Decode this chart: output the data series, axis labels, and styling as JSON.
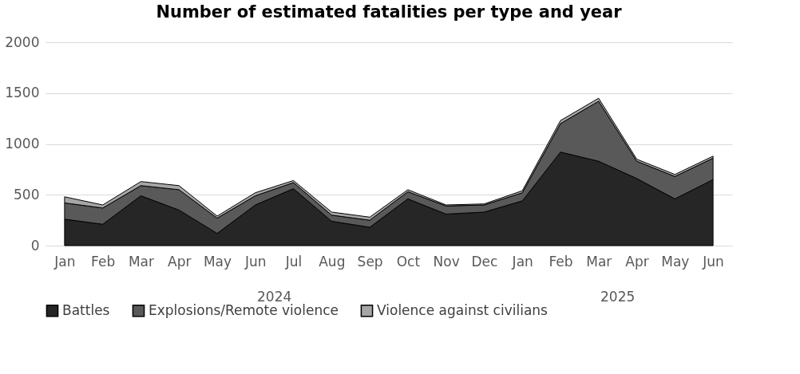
{
  "chart_data": {
    "type": "area",
    "title": "Number of estimated fatalities per type and year",
    "categories": [
      "Jan",
      "Feb",
      "Mar",
      "Apr",
      "May",
      "Jun",
      "Jul",
      "Aug",
      "Sep",
      "Oct",
      "Nov",
      "Dec",
      "Jan",
      "Feb",
      "Mar",
      "Apr",
      "May",
      "Jun"
    ],
    "stacked": true,
    "series": [
      {
        "name": "Battles",
        "color": "#262626",
        "values": [
          260,
          210,
          490,
          350,
          120,
          400,
          560,
          240,
          180,
          460,
          310,
          330,
          440,
          920,
          830,
          660,
          460,
          650
        ]
      },
      {
        "name": "Explosions/Remote violence",
        "color": "#595959",
        "values": [
          160,
          160,
          100,
          200,
          150,
          90,
          60,
          60,
          70,
          70,
          80,
          70,
          80,
          280,
          590,
          170,
          220,
          210
        ]
      },
      {
        "name": "Violence against civilians",
        "color": "#a6a6a6",
        "values": [
          60,
          30,
          40,
          40,
          20,
          30,
          20,
          30,
          30,
          20,
          10,
          10,
          20,
          30,
          30,
          20,
          20,
          20
        ]
      }
    ],
    "ylim": [
      0,
      2000
    ],
    "yticks": [
      0,
      500,
      1000,
      1500,
      2000
    ],
    "grid": "y",
    "legend": "bottom",
    "annotations": [
      "2024",
      "2025"
    ]
  }
}
